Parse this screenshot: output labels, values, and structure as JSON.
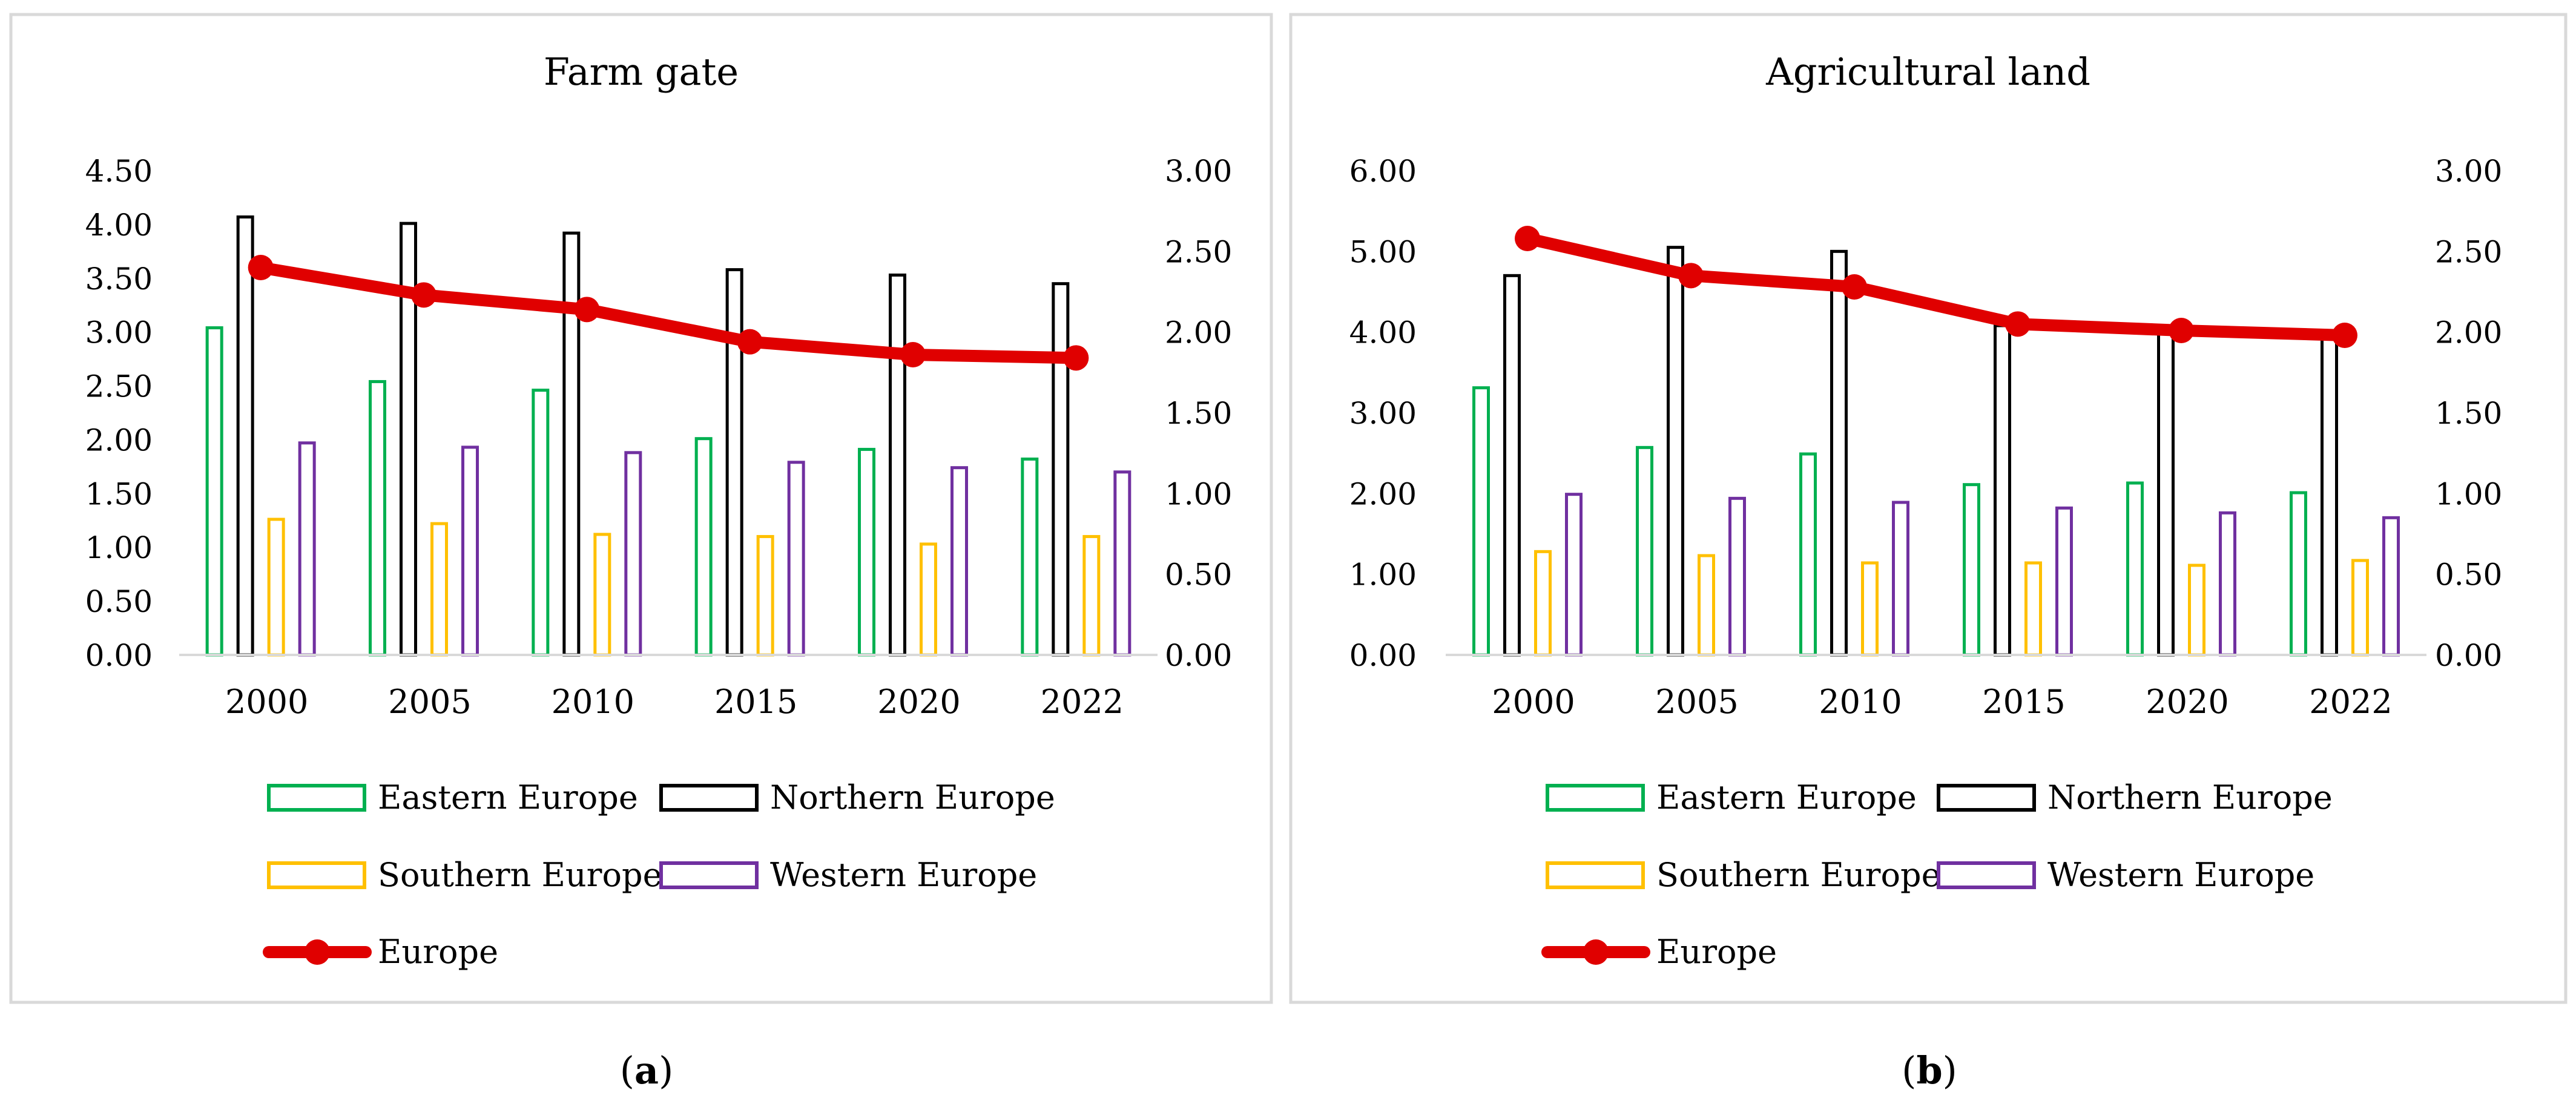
{
  "panels": [
    {
      "caption_letter": "a",
      "chart_data": {
        "type": "bar",
        "title": "Farm gate",
        "categories": [
          "2000",
          "2005",
          "2010",
          "2015",
          "2020",
          "2022"
        ],
        "y_left": {
          "min": 0,
          "max": 4.5,
          "step": 0.5,
          "labels": [
            "0.00",
            "0.50",
            "1.00",
            "1.50",
            "2.00",
            "2.50",
            "3.00",
            "3.50",
            "4.00",
            "4.50"
          ]
        },
        "y_right": {
          "min": 0,
          "max": 3.0,
          "step": 0.5,
          "labels": [
            "0.00",
            "0.50",
            "1.00",
            "1.50",
            "2.00",
            "2.50",
            "3.00"
          ]
        },
        "series": [
          {
            "name": "Eastern Europe",
            "kind": "bar",
            "axis": "left",
            "color": "#00b050",
            "values": [
              3.04,
              2.54,
              2.46,
              2.01,
              1.91,
              1.82
            ]
          },
          {
            "name": "Northern Europe",
            "kind": "bar",
            "axis": "left",
            "color": "#000000",
            "values": [
              4.07,
              4.01,
              3.92,
              3.58,
              3.53,
              3.45
            ]
          },
          {
            "name": "Southern Europe",
            "kind": "bar",
            "axis": "left",
            "color": "#ffc000",
            "values": [
              1.26,
              1.22,
              1.12,
              1.1,
              1.03,
              1.1
            ]
          },
          {
            "name": "Western Europe",
            "kind": "bar",
            "axis": "left",
            "color": "#7030a0",
            "values": [
              1.97,
              1.93,
              1.88,
              1.79,
              1.74,
              1.7
            ]
          },
          {
            "name": "Europe",
            "kind": "line",
            "axis": "right",
            "color": "#e00000",
            "values": [
              2.4,
              2.23,
              2.14,
              1.94,
              1.86,
              1.84
            ]
          }
        ],
        "legend_position": "bottom"
      }
    },
    {
      "caption_letter": "b",
      "chart_data": {
        "type": "bar",
        "title": "Agricultural land",
        "categories": [
          "2000",
          "2005",
          "2010",
          "2015",
          "2020",
          "2022"
        ],
        "y_left": {
          "min": 0,
          "max": 6.0,
          "step": 1.0,
          "labels": [
            "0.00",
            "1.00",
            "2.00",
            "3.00",
            "4.00",
            "5.00",
            "6.00"
          ]
        },
        "y_right": {
          "min": 0,
          "max": 3.0,
          "step": 0.5,
          "labels": [
            "0.00",
            "0.50",
            "1.00",
            "1.50",
            "2.00",
            "2.50",
            "3.00"
          ]
        },
        "series": [
          {
            "name": "Eastern Europe",
            "kind": "bar",
            "axis": "left",
            "color": "#00b050",
            "values": [
              3.31,
              2.57,
              2.49,
              2.11,
              2.13,
              2.01
            ]
          },
          {
            "name": "Northern Europe",
            "kind": "bar",
            "axis": "left",
            "color": "#000000",
            "values": [
              4.7,
              5.05,
              5.0,
              4.08,
              4.05,
              3.98
            ]
          },
          {
            "name": "Southern Europe",
            "kind": "bar",
            "axis": "left",
            "color": "#ffc000",
            "values": [
              1.28,
              1.23,
              1.14,
              1.14,
              1.11,
              1.17
            ]
          },
          {
            "name": "Western Europe",
            "kind": "bar",
            "axis": "left",
            "color": "#7030a0",
            "values": [
              1.99,
              1.94,
              1.89,
              1.82,
              1.76,
              1.7
            ]
          },
          {
            "name": "Europe",
            "kind": "line",
            "axis": "right",
            "color": "#e00000",
            "values": [
              2.58,
              2.35,
              2.28,
              2.05,
              2.01,
              1.98
            ]
          }
        ],
        "legend_position": "bottom"
      }
    }
  ]
}
